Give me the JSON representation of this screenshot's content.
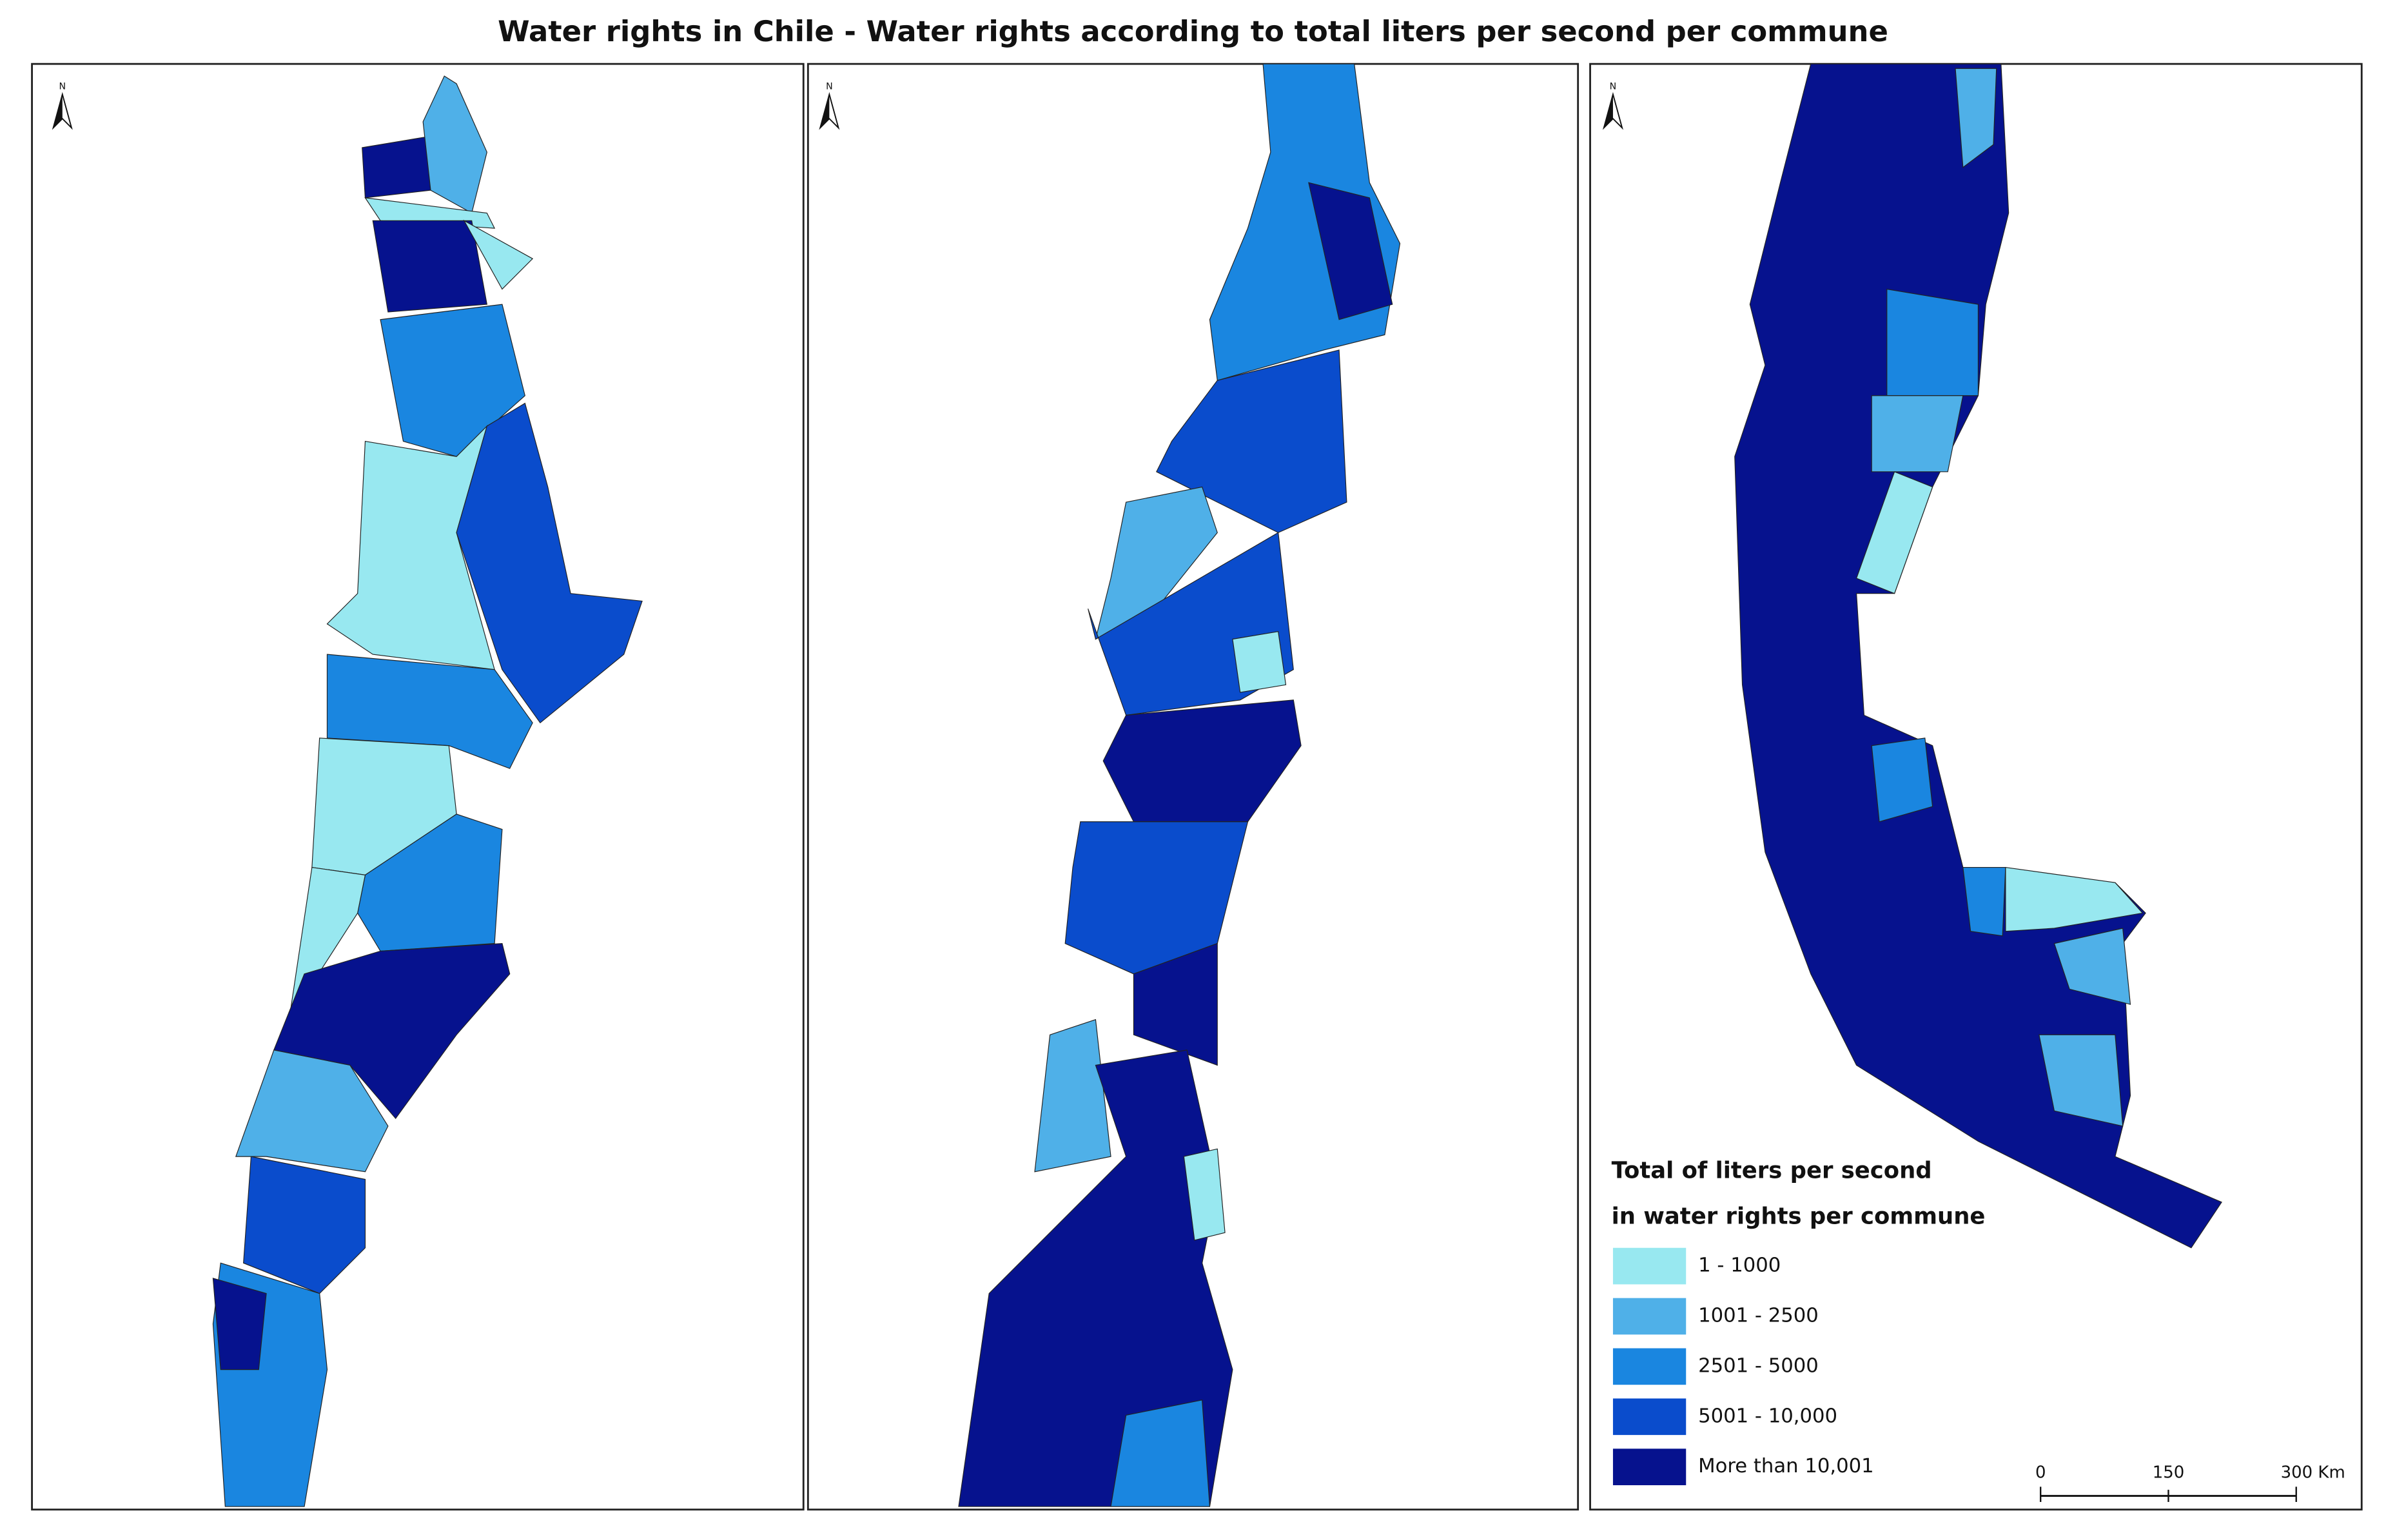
{
  "title": "Water rights in Chile - Water rights according to total liters per second per commune",
  "north_label": "N",
  "legend": {
    "title": [
      "Total of liters per second",
      "in water rights per commune"
    ],
    "items": [
      {
        "label": "1 - 1000",
        "color": "#98e8f0"
      },
      {
        "label": "1001 - 2500",
        "color": "#4fb0e8"
      },
      {
        "label": "2501 - 5000",
        "color": "#1a86e0"
      },
      {
        "label": "5001 - 10,000",
        "color": "#0a4ccc"
      },
      {
        "label": "More than 10,001",
        "color": "#06128e"
      }
    ]
  },
  "scale_bar": {
    "labels": [
      "0",
      "150",
      "300 Km"
    ]
  }
}
